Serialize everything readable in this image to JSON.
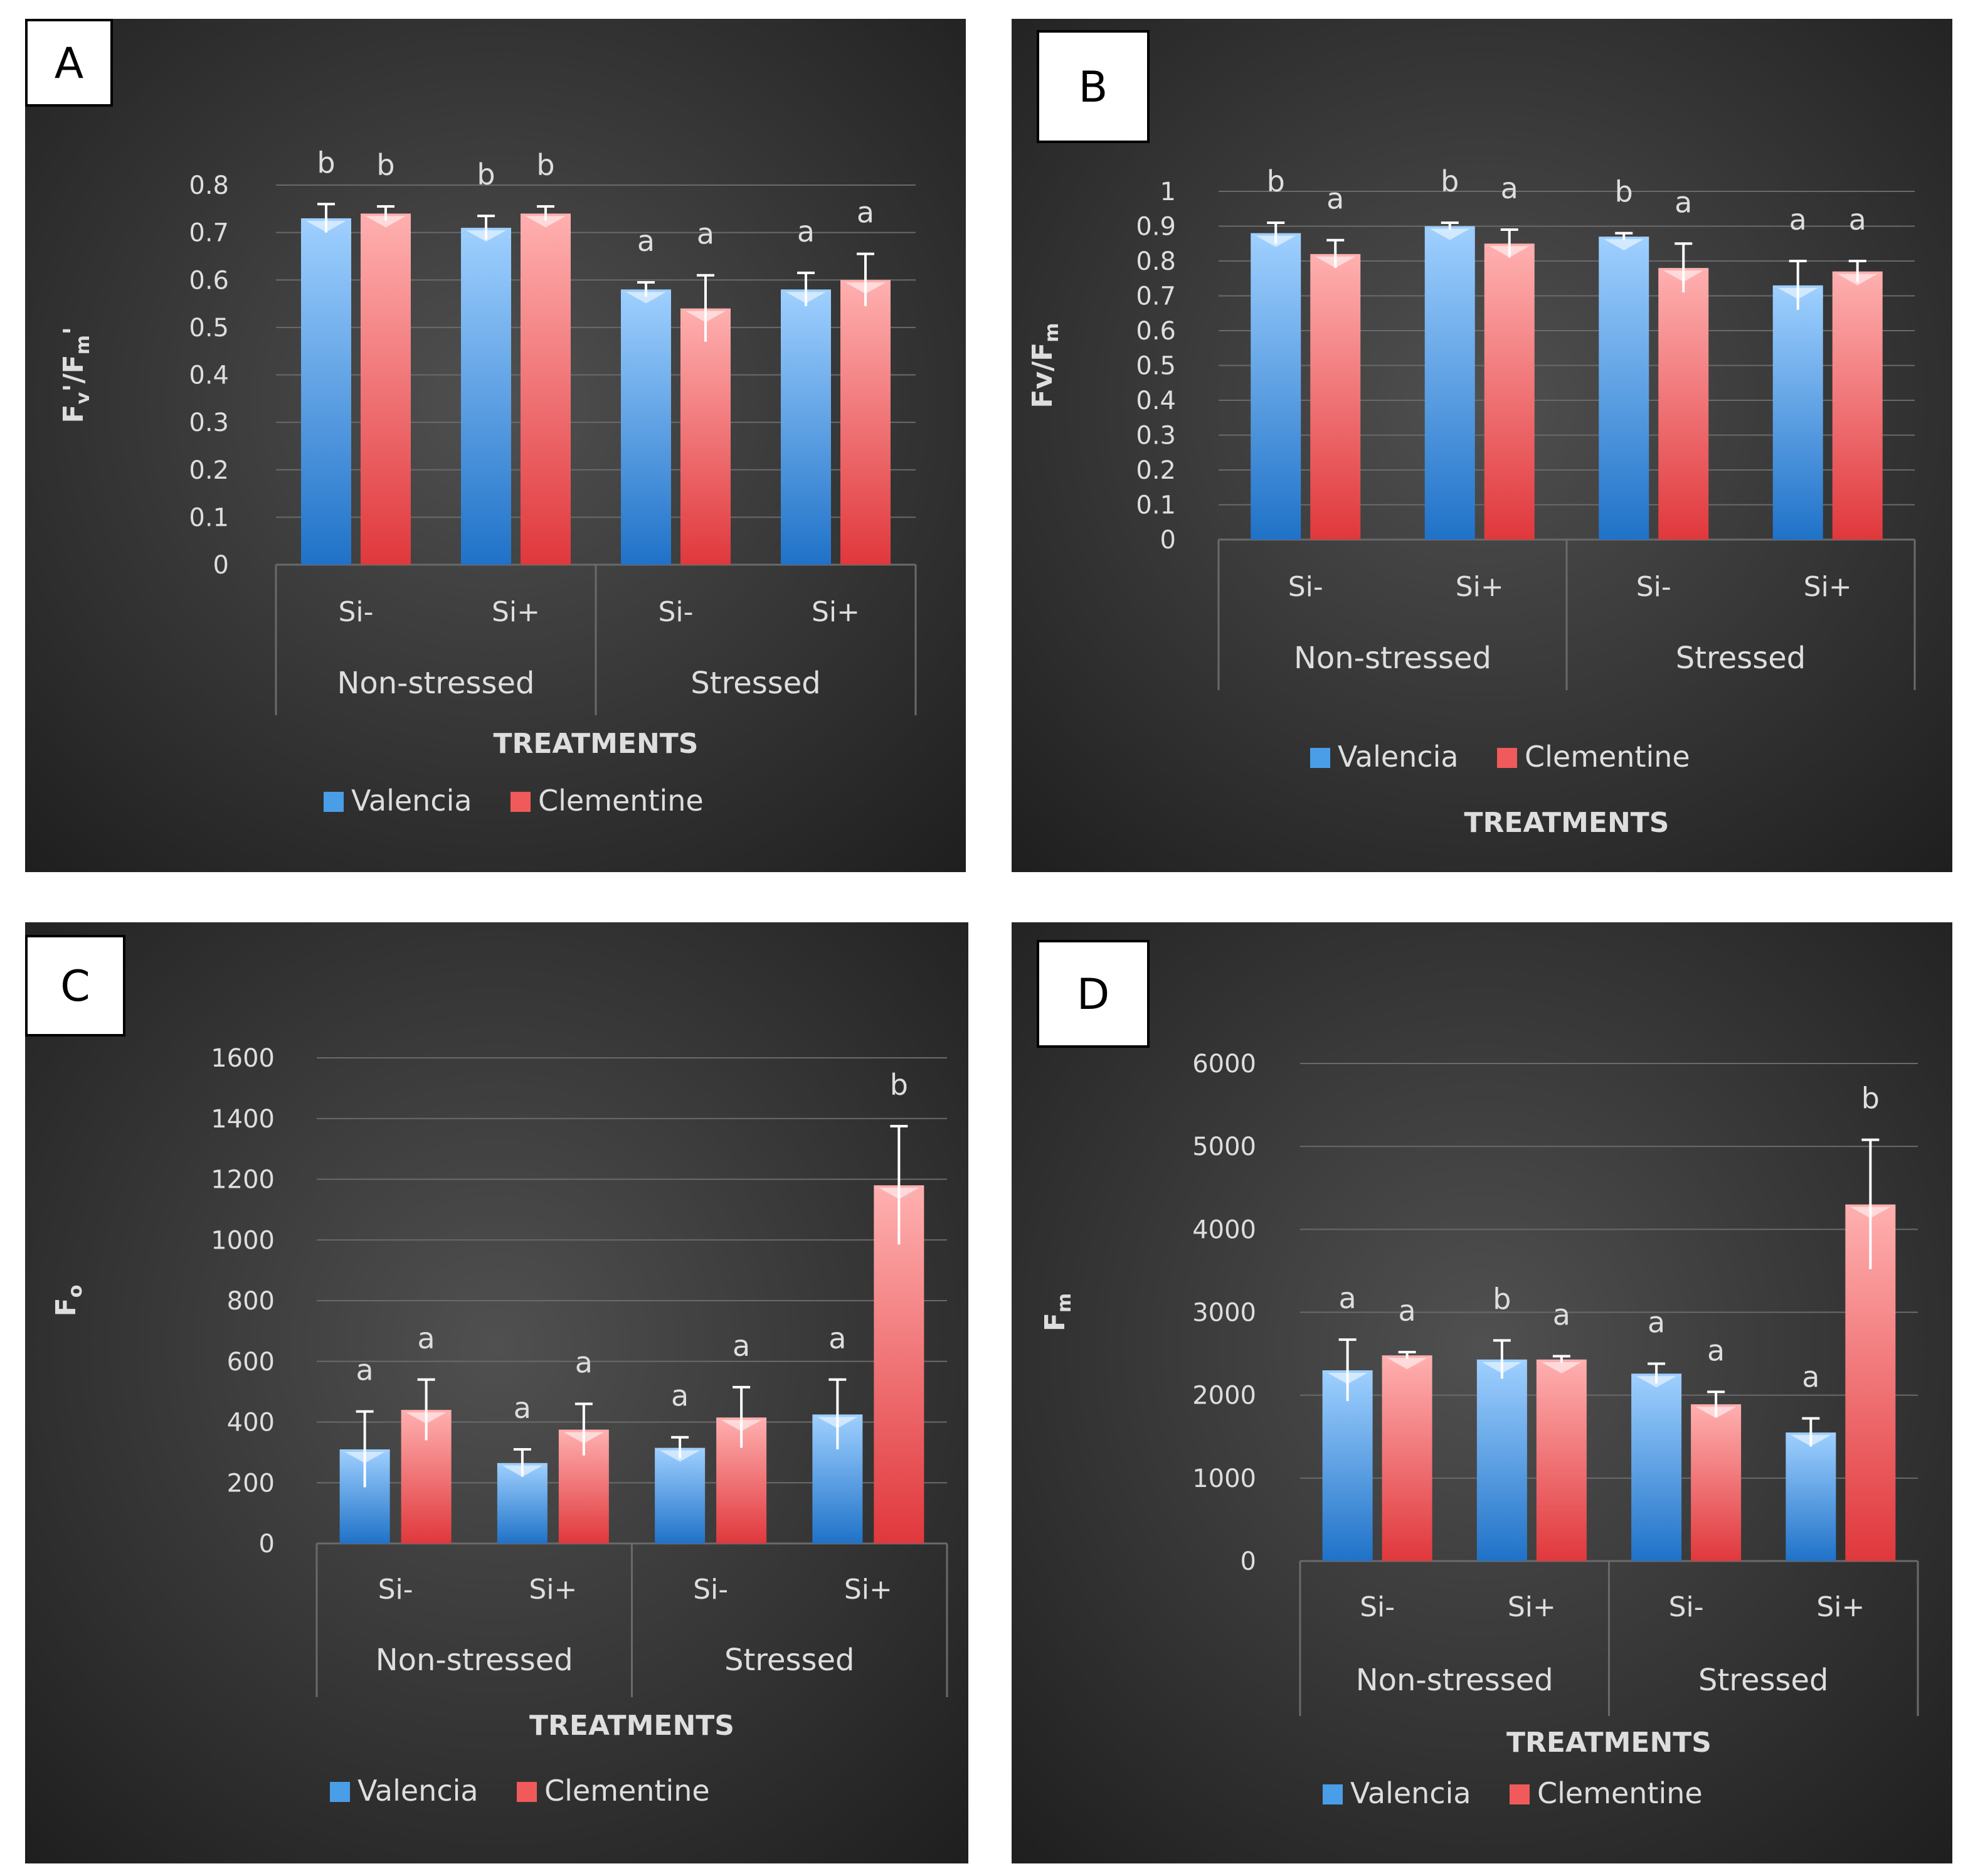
{
  "colors": {
    "valencia": "#4a9ee8",
    "clementine": "#f05a5a",
    "panel_bg_center": "#505050",
    "panel_bg_edge": "#1e1e1e",
    "grid": "#6a6a6a",
    "text": "#dedede",
    "error_bar": "#ffffff"
  },
  "chart_data": [
    {
      "panel_label": "A",
      "type": "bar",
      "ylabel": "Fv'/Fm'",
      "xlabel": "TREATMENTS",
      "ylim": [
        0,
        0.8
      ],
      "yticks": [
        "0",
        "0.1",
        "0.2",
        "0.3",
        "0.4",
        "0.5",
        "0.6",
        "0.7",
        "0.8"
      ],
      "groups": [
        "Non-stressed",
        "Stressed"
      ],
      "categories": [
        "Si-",
        "Si+",
        "Si-",
        "Si+"
      ],
      "legend_position": "bottom",
      "series": [
        {
          "name": "Valencia",
          "values": [
            0.73,
            0.71,
            0.58,
            0.58
          ],
          "errors": [
            0.03,
            0.025,
            0.015,
            0.035
          ],
          "letters": [
            "b",
            "b",
            "a",
            "a"
          ]
        },
        {
          "name": "Clementine",
          "values": [
            0.74,
            0.74,
            0.54,
            0.6
          ],
          "errors": [
            0.015,
            0.015,
            0.07,
            0.055
          ],
          "letters": [
            "b",
            "b",
            "a",
            "a"
          ]
        }
      ]
    },
    {
      "panel_label": "B",
      "type": "bar",
      "ylabel": "Fv/Fm",
      "xlabel": "TREATMENTS",
      "ylim": [
        0,
        1
      ],
      "yticks": [
        "0",
        "0.1",
        "0.2",
        "0.3",
        "0.4",
        "0.5",
        "0.6",
        "0.7",
        "0.8",
        "0.9",
        "1"
      ],
      "groups": [
        "Non-stressed",
        "Stressed"
      ],
      "categories": [
        "Si-",
        "Si+",
        "Si-",
        "Si+"
      ],
      "legend_position": "bottom",
      "series": [
        {
          "name": "Valencia",
          "values": [
            0.88,
            0.9,
            0.87,
            0.73
          ],
          "errors": [
            0.03,
            0.01,
            0.01,
            0.07
          ],
          "letters": [
            "b",
            "b",
            "b",
            "a"
          ]
        },
        {
          "name": "Clementine",
          "values": [
            0.82,
            0.85,
            0.78,
            0.77
          ],
          "errors": [
            0.04,
            0.04,
            0.07,
            0.03
          ],
          "letters": [
            "a",
            "a",
            "a",
            "a"
          ]
        }
      ]
    },
    {
      "panel_label": "C",
      "type": "bar",
      "ylabel": "Fo",
      "xlabel": "TREATMENTS",
      "ylim": [
        0,
        1600
      ],
      "yticks": [
        "0",
        "200",
        "400",
        "600",
        "800",
        "1000",
        "1200",
        "1400",
        "1600"
      ],
      "groups": [
        "Non-stressed",
        "Stressed"
      ],
      "categories": [
        "Si-",
        "Si+",
        "Si-",
        "Si+"
      ],
      "legend_position": "bottom",
      "series": [
        {
          "name": "Valencia",
          "values": [
            310,
            265,
            315,
            425
          ],
          "errors": [
            125,
            45,
            35,
            115
          ],
          "letters": [
            "a",
            "a",
            "a",
            "a"
          ]
        },
        {
          "name": "Clementine",
          "values": [
            440,
            375,
            415,
            1180
          ],
          "errors": [
            100,
            85,
            100,
            195
          ],
          "letters": [
            "a",
            "a",
            "a",
            "b"
          ]
        }
      ]
    },
    {
      "panel_label": "D",
      "type": "bar",
      "ylabel": "Fm",
      "xlabel": "TREATMENTS",
      "ylim": [
        0,
        6000
      ],
      "yticks": [
        "0",
        "1000",
        "2000",
        "3000",
        "4000",
        "5000",
        "6000"
      ],
      "groups": [
        "Non-stressed",
        "Stressed"
      ],
      "categories": [
        "Si-",
        "Si+",
        "Si-",
        "Si+"
      ],
      "legend_position": "bottom",
      "series": [
        {
          "name": "Valencia",
          "values": [
            2300,
            2430,
            2260,
            1550
          ],
          "errors": [
            370,
            230,
            120,
            170
          ],
          "letters": [
            "a",
            "b",
            "a",
            "a"
          ]
        },
        {
          "name": "Clementine",
          "values": [
            2480,
            2430,
            1890,
            4300
          ],
          "errors": [
            40,
            40,
            150,
            780
          ],
          "letters": [
            "a",
            "a",
            "a",
            "b"
          ]
        }
      ]
    }
  ]
}
